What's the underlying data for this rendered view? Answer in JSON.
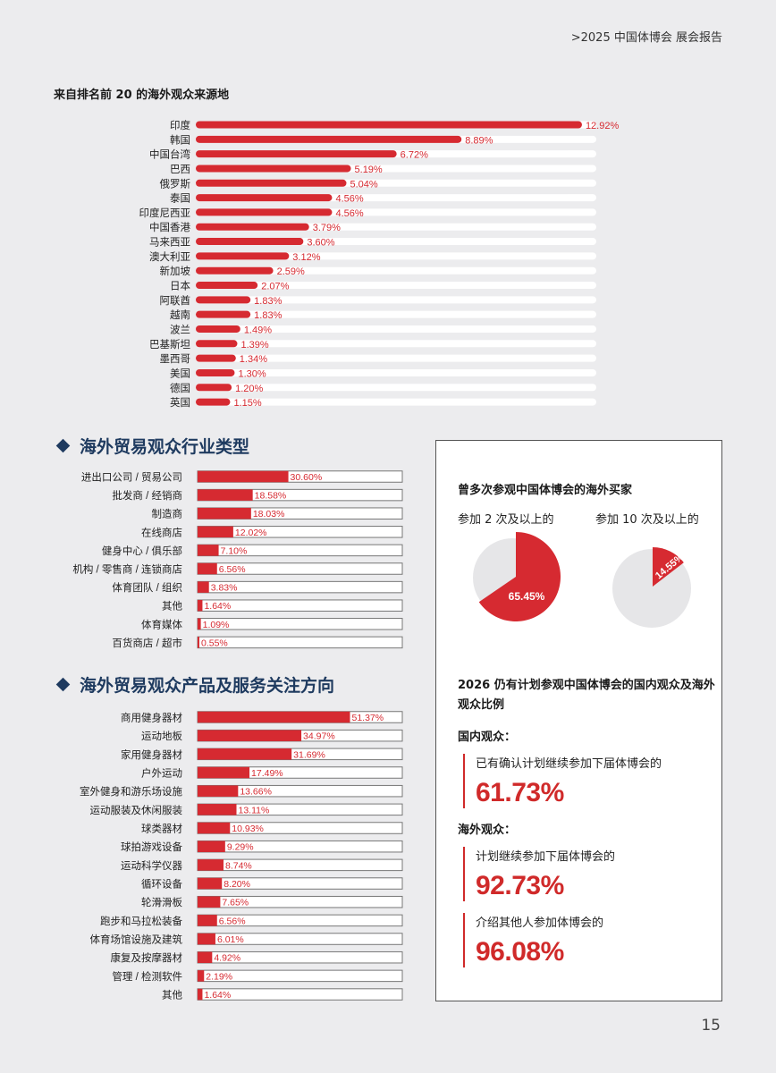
{
  "header": {
    "text": ">2025 中国体博会  展会报告"
  },
  "origin_section": {
    "title": "来自排名前 20 的海外观众来源地",
    "chart_data": {
      "type": "bar",
      "orientation": "horizontal",
      "categories": [
        "印度",
        "韩国",
        "中国台湾",
        "巴西",
        "俄罗斯",
        "泰国",
        "印度尼西亚",
        "中国香港",
        "马来西亚",
        "澳大利亚",
        "新加坡",
        "日本",
        "阿联酋",
        "越南",
        "波兰",
        "巴基斯坦",
        "墨西哥",
        "美国",
        "德国",
        "英国"
      ],
      "values": [
        12.92,
        8.89,
        6.72,
        5.19,
        5.04,
        4.56,
        4.56,
        3.79,
        3.6,
        3.12,
        2.59,
        2.07,
        1.83,
        1.83,
        1.49,
        1.39,
        1.34,
        1.3,
        1.2,
        1.15
      ],
      "labels": [
        "12.92%",
        "8.89%",
        "6.72%",
        "5.19%",
        "5.04%",
        "4.56%",
        "4.56%",
        "3.79%",
        "3.60%",
        "3.12%",
        "2.59%",
        "2.07%",
        "1.83%",
        "1.83%",
        "1.49%",
        "1.39%",
        "1.34%",
        "1.30%",
        "1.20%",
        "1.15%"
      ],
      "unit": "%",
      "xlim": [
        0,
        13.4
      ],
      "bar_color": "#d62a31",
      "track_color": "#ffffff"
    }
  },
  "industry_section": {
    "title": "海外贸易观众行业类型",
    "chart_data": {
      "type": "bar",
      "orientation": "horizontal",
      "categories": [
        "进出口公司 / 贸易公司",
        "批发商 / 经销商",
        "制造商",
        "在线商店",
        "健身中心 / 俱乐部",
        "机构 / 零售商 / 连锁商店",
        "体育团队 / 组织",
        "其他",
        "体育媒体",
        "百货商店 / 超市"
      ],
      "values": [
        30.6,
        18.58,
        18.03,
        12.02,
        7.1,
        6.56,
        3.83,
        1.64,
        1.09,
        0.55
      ],
      "labels": [
        "30.60%",
        "18.58%",
        "18.03%",
        "12.02%",
        "7.10%",
        "6.56%",
        "3.83%",
        "1.64%",
        "1.09%",
        "0.55%"
      ],
      "unit": "%",
      "xlim": [
        0,
        69
      ],
      "bar_color": "#d62a31"
    }
  },
  "product_section": {
    "title": "海外贸易观众产品及服务关注方向",
    "chart_data": {
      "type": "bar",
      "orientation": "horizontal",
      "categories": [
        "商用健身器材",
        "运动地板",
        "家用健身器材",
        "户外运动",
        "室外健身和游乐场设施",
        "运动服装及休闲服装",
        "球类器材",
        "球拍游戏设备",
        "运动科学仪器",
        "循环设备",
        "轮滑滑板",
        "跑步和马拉松装备",
        "体育场馆设施及建筑",
        "康复及按摩器材",
        "管理 / 检测软件",
        "其他"
      ],
      "values": [
        51.37,
        34.97,
        31.69,
        17.49,
        13.66,
        13.11,
        10.93,
        9.29,
        8.74,
        8.2,
        7.65,
        6.56,
        6.01,
        4.92,
        2.19,
        1.64
      ],
      "labels": [
        "51.37%",
        "34.97%",
        "31.69%",
        "17.49%",
        "13.66%",
        "13.11%",
        "10.93%",
        "9.29%",
        "8.74%",
        "8.20%",
        "7.65%",
        "6.56%",
        "6.01%",
        "4.92%",
        "2.19%",
        "1.64%"
      ],
      "unit": "%",
      "xlim": [
        0,
        69
      ],
      "bar_color": "#d62a31"
    }
  },
  "panel": {
    "repeat_title": "曾多次参观中国体博会的海外买家",
    "pie1": {
      "label": "参加 2 次及以上的",
      "value": 65.45,
      "text": "65.45%",
      "color": "#d62a31",
      "rest_color": "#e6e6e8"
    },
    "pie2": {
      "label": "参加 10 次及以上的",
      "value": 14.55,
      "text": "14.55%",
      "color": "#d62a31",
      "rest_color": "#e6e6e8"
    },
    "return_title": "2026 仍有计划参观中国体博会的国内观众及海外观众比例",
    "domestic_label": "国内观众：",
    "domestic_stat": {
      "text": "已有确认计划继续参加下届体博会的",
      "value": "61.73%"
    },
    "overseas_label": "海外观众：",
    "overseas_stat1": {
      "text": "计划继续参加下届体博会的",
      "value": "92.73%"
    },
    "overseas_stat2": {
      "text": "介绍其他人参加体博会的",
      "value": "96.08%"
    }
  },
  "page_number": "15"
}
